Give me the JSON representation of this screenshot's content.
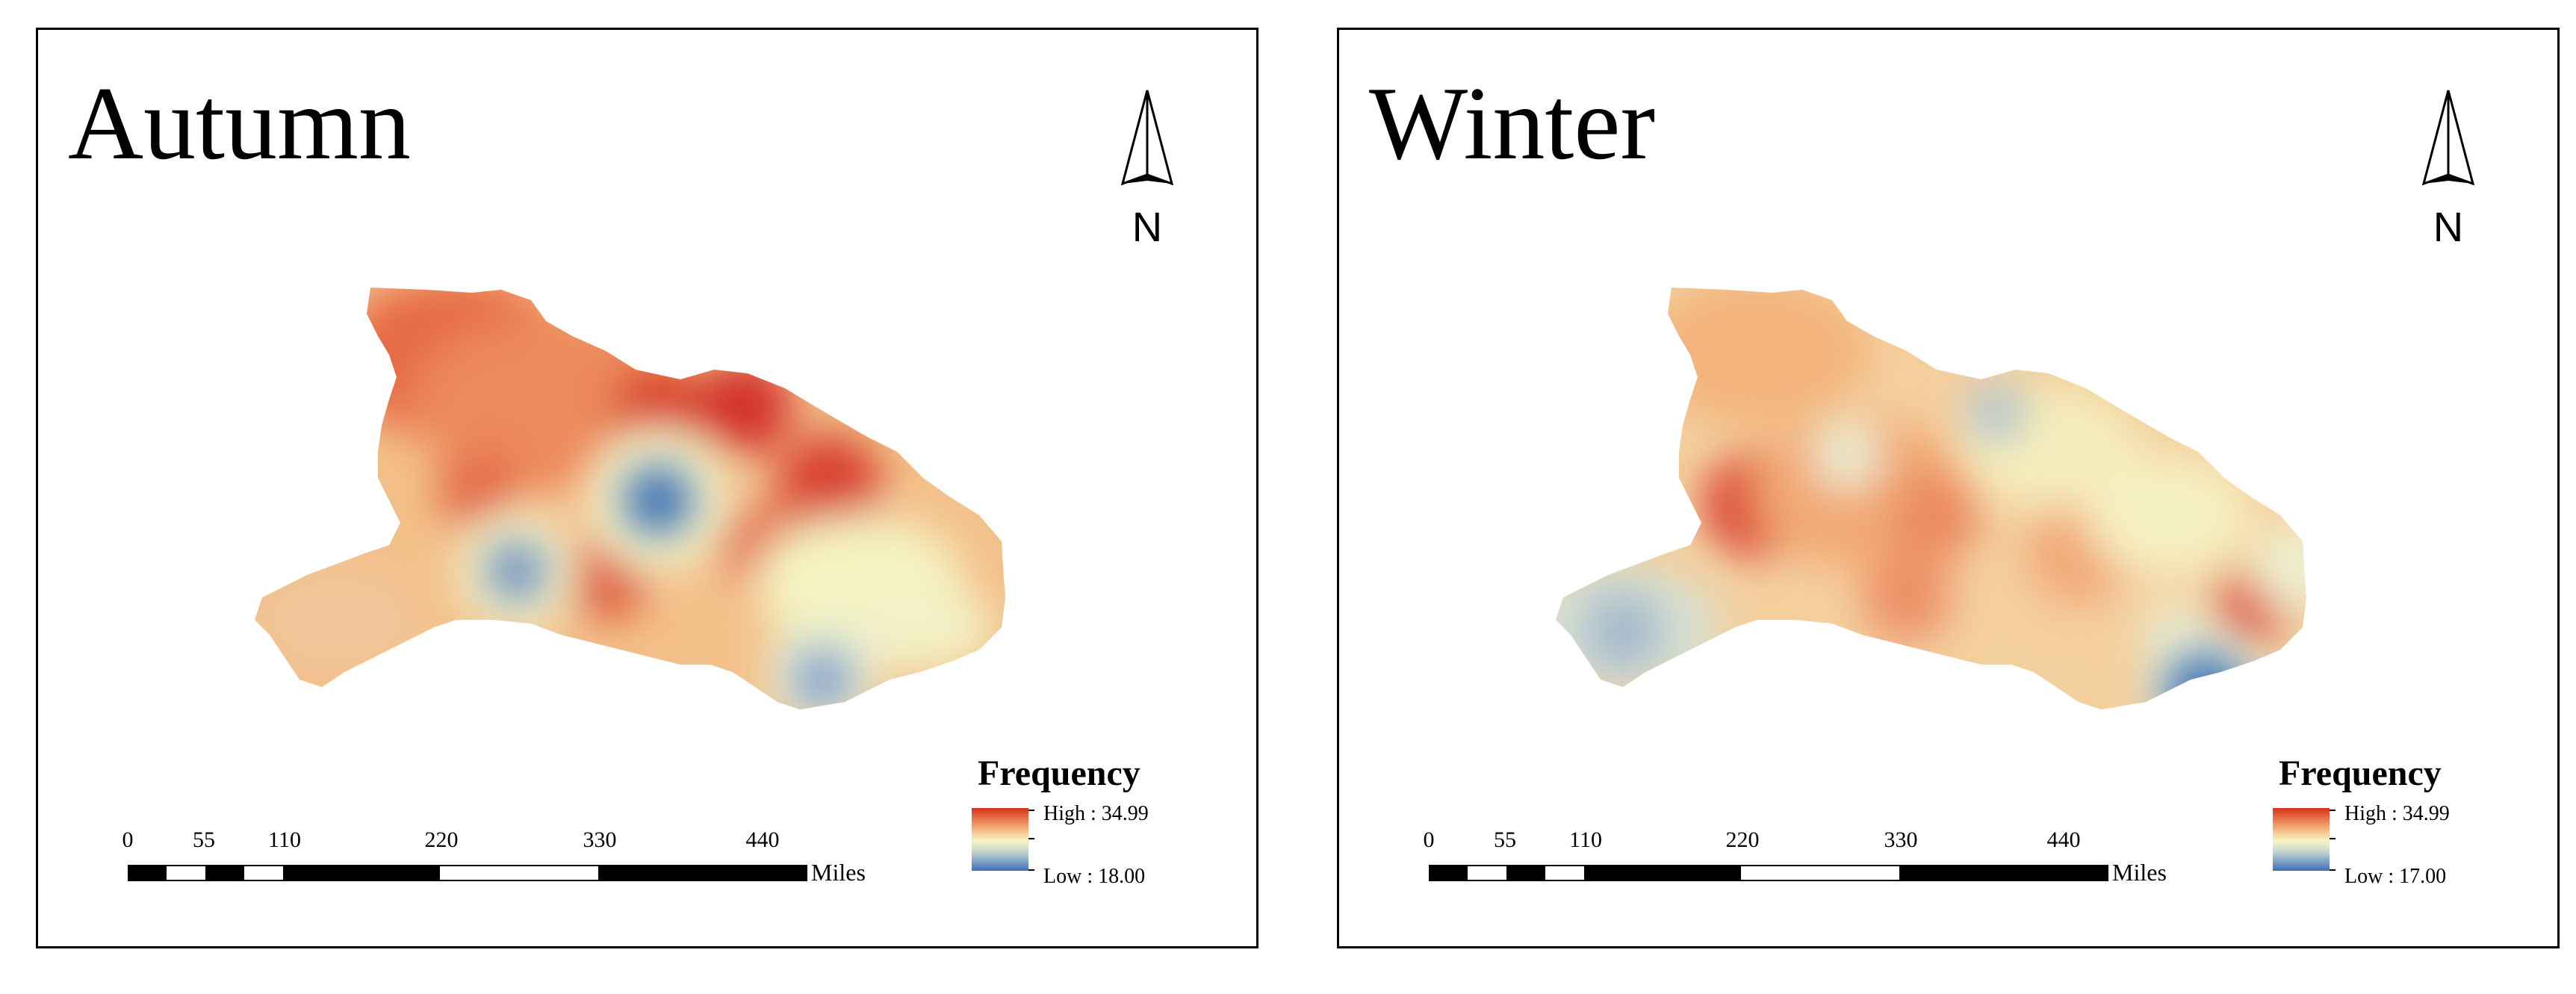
{
  "panels": [
    {
      "season": "Autumn",
      "north_label": "N",
      "legend": {
        "title": "Frequency",
        "high_label": "High : 34.99",
        "low_label": "Low : 18.00",
        "color_ramp": [
          "#d7301f",
          "#f39d6a",
          "#f7f7c0",
          "#c4d3cf",
          "#3a6fb8"
        ]
      },
      "scale_bar": {
        "ticks": [
          "0",
          "55",
          "110",
          "220",
          "330",
          "440"
        ],
        "units": "Miles"
      }
    },
    {
      "season": "Winter",
      "north_label": "N",
      "legend": {
        "title": "Frequency",
        "high_label": "High : 34.99",
        "low_label": "Low : 17.00",
        "color_ramp": [
          "#d7301f",
          "#f39d6a",
          "#f7f7c0",
          "#c4d3cf",
          "#3a6fb8"
        ]
      },
      "scale_bar": {
        "ticks": [
          "0",
          "55",
          "110",
          "220",
          "330",
          "440"
        ],
        "units": "Miles"
      }
    }
  ]
}
